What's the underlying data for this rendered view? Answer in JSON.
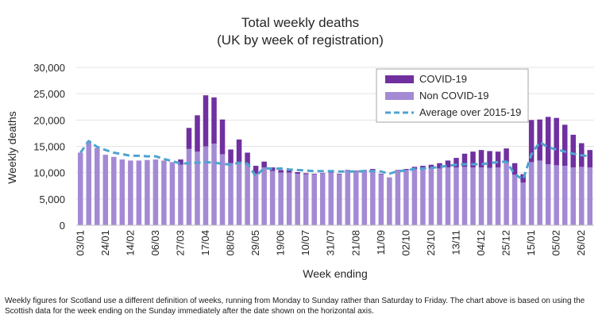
{
  "chart_data": {
    "type": "bar",
    "title": [
      "Total weekly deaths",
      "(UK by week of registration)"
    ],
    "xlabel": "Week ending",
    "ylabel": "Weekly deaths",
    "ylim": [
      0,
      30000
    ],
    "yticks": [
      "0",
      "5,000",
      "10,000",
      "15,000",
      "20,000",
      "25,000",
      "30,000"
    ],
    "xtick_labels": [
      "03/01",
      "24/01",
      "14/02",
      "06/03",
      "27/03",
      "17/04",
      "08/05",
      "29/05",
      "19/06",
      "10/07",
      "31/07",
      "21/08",
      "11/09",
      "02/10",
      "23/10",
      "13/11",
      "04/12",
      "25/12",
      "15/01",
      "05/02",
      "26/02"
    ],
    "stacked": true,
    "legend_position": "top-right",
    "colors": {
      "covid": "#7030a0",
      "non_covid": "#a48ad4",
      "average": "#4fa3d1"
    },
    "series": [
      {
        "name": "Non COVID-19",
        "type": "bar",
        "values": [
          13800,
          16000,
          14700,
          13400,
          13000,
          12500,
          12300,
          12300,
          12400,
          12500,
          12300,
          12000,
          11500,
          14500,
          14000,
          15000,
          15500,
          13500,
          11800,
          12000,
          11500,
          9800,
          11000,
          10300,
          10000,
          10000,
          9800,
          9700,
          9700,
          9800,
          10000,
          9700,
          10400,
          10300,
          10400,
          10500,
          9700,
          9100,
          10400,
          10500,
          10700,
          10800,
          10800,
          10800,
          11000,
          11000,
          11100,
          11000,
          11000,
          10900,
          11000,
          12000,
          9600,
          8100,
          12000,
          12300,
          11600,
          11400,
          11300,
          11000,
          11100,
          11000
        ]
      },
      {
        "name": "COVID-19",
        "type": "bar",
        "values": [
          0,
          0,
          0,
          0,
          0,
          0,
          0,
          0,
          0,
          0,
          0,
          0,
          1000,
          4000,
          6900,
          9700,
          8800,
          6600,
          2600,
          4300,
          2300,
          1500,
          1100,
          700,
          500,
          400,
          300,
          200,
          100,
          100,
          100,
          100,
          100,
          100,
          100,
          200,
          100,
          0,
          100,
          200,
          400,
          500,
          700,
          1000,
          1300,
          1800,
          2500,
          3000,
          3300,
          3200,
          3000,
          2600,
          2200,
          1600,
          8000,
          7800,
          9000,
          9000,
          7800,
          6200,
          4500,
          3300
        ]
      },
      {
        "name": "Average over 2015-19",
        "type": "line",
        "values": [
          13800,
          16000,
          14900,
          14300,
          13800,
          13500,
          13200,
          13200,
          13100,
          13100,
          12600,
          12200,
          11700,
          11800,
          11900,
          12000,
          11900,
          11700,
          11500,
          11900,
          11700,
          9300,
          10900,
          10700,
          10800,
          10600,
          10500,
          10400,
          10300,
          10300,
          10300,
          10200,
          10200,
          10200,
          10300,
          10300,
          10200,
          9800,
          10300,
          10400,
          10700,
          10800,
          10900,
          11100,
          11300,
          11500,
          11600,
          11600,
          11600,
          11800,
          12000,
          12100,
          9700,
          8700,
          13500,
          15800,
          14800,
          14400,
          14000,
          13600,
          13300,
          13100
        ]
      }
    ]
  },
  "footnote": "Weekly figures for Scotland use a different definition of weeks, running from Monday to Sunday rather than Saturday to Friday. The chart above is based on using the Scottish data for the week ending on the Sunday immediately after the date shown on the horizontal axis."
}
